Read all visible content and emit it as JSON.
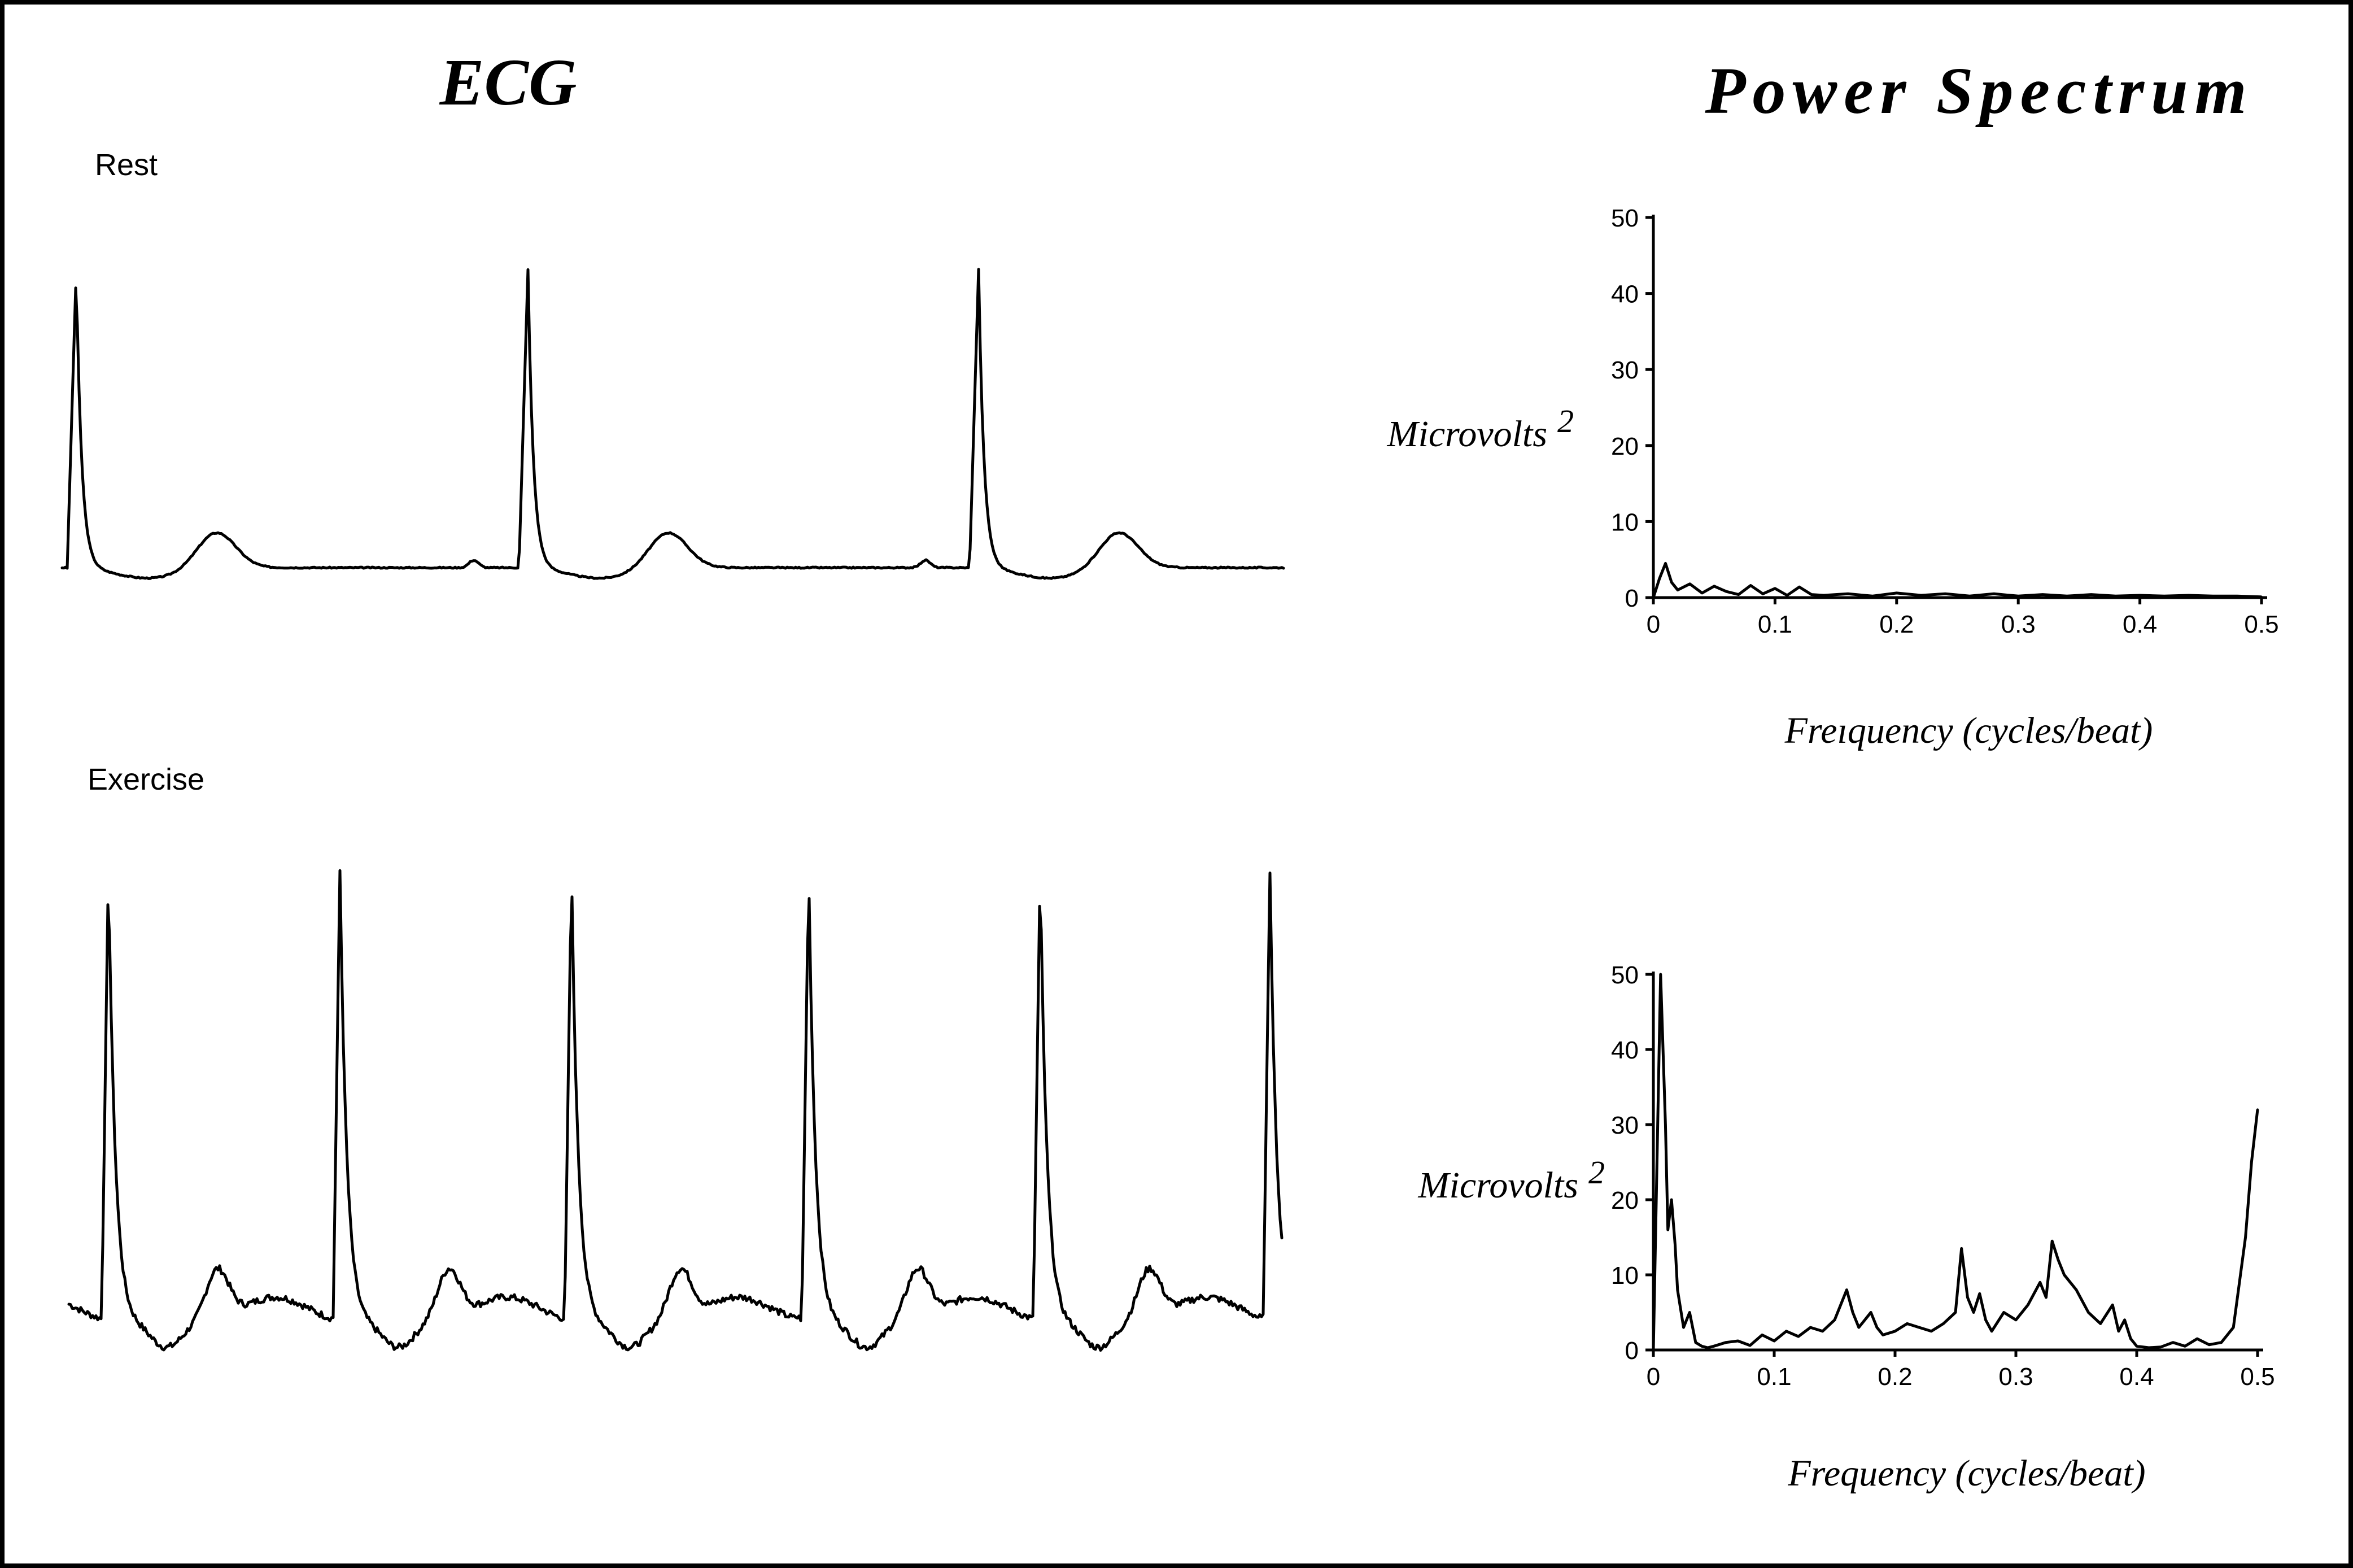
{
  "headings": {
    "ecg": "ECG",
    "power_spectrum": "Power Spectrum"
  },
  "ecg_labels": {
    "rest": "Rest",
    "exercise": "Exercise"
  },
  "chart_data": [
    {
      "type": "line",
      "panel": "rest-spectrum",
      "ylabel": "Microvolts",
      "ylabel_superscript": "2",
      "xlabel": "Frequency (cycles/beat)",
      "xlabel_as_printed": "Freıquency (cycles/beat)",
      "xlim": [
        0,
        0.5
      ],
      "ylim": [
        0,
        50
      ],
      "xticks": [
        "0",
        "0.1",
        "0.2",
        "0.3",
        "0.4",
        "0.5"
      ],
      "yticks": [
        "0",
        "10",
        "20",
        "30",
        "40",
        "50"
      ],
      "x": [
        0,
        0.005,
        0.01,
        0.015,
        0.02,
        0.03,
        0.04,
        0.05,
        0.06,
        0.07,
        0.08,
        0.09,
        0.1,
        0.11,
        0.12,
        0.13,
        0.14,
        0.16,
        0.18,
        0.2,
        0.22,
        0.24,
        0.26,
        0.28,
        0.3,
        0.32,
        0.34,
        0.36,
        0.38,
        0.4,
        0.42,
        0.44,
        0.46,
        0.48,
        0.5
      ],
      "y": [
        0,
        2.5,
        4.5,
        2,
        1,
        1.8,
        0.6,
        1.5,
        0.8,
        0.4,
        1.6,
        0.5,
        1.2,
        0.3,
        1.4,
        0.4,
        0.3,
        0.5,
        0.2,
        0.6,
        0.3,
        0.5,
        0.2,
        0.5,
        0.2,
        0.4,
        0.2,
        0.4,
        0.2,
        0.3,
        0.2,
        0.3,
        0.2,
        0.2,
        0.1
      ]
    },
    {
      "type": "line",
      "panel": "exercise-spectrum",
      "ylabel": "Microvolts",
      "ylabel_superscript": "2",
      "xlabel": "Frequency (cycles/beat)",
      "xlim": [
        0,
        0.5
      ],
      "ylim": [
        0,
        50
      ],
      "xticks": [
        "0",
        "0.1",
        "0.2",
        "0.3",
        "0.4",
        "0.5"
      ],
      "yticks": [
        "0",
        "10",
        "20",
        "30",
        "40",
        "50"
      ],
      "x": [
        0,
        0.006,
        0.01,
        0.012,
        0.015,
        0.018,
        0.02,
        0.025,
        0.03,
        0.035,
        0.04,
        0.045,
        0.05,
        0.06,
        0.07,
        0.08,
        0.09,
        0.1,
        0.11,
        0.12,
        0.13,
        0.14,
        0.15,
        0.16,
        0.165,
        0.17,
        0.18,
        0.185,
        0.19,
        0.2,
        0.21,
        0.22,
        0.23,
        0.24,
        0.25,
        0.255,
        0.26,
        0.265,
        0.27,
        0.275,
        0.28,
        0.29,
        0.3,
        0.31,
        0.32,
        0.325,
        0.33,
        0.335,
        0.34,
        0.35,
        0.36,
        0.37,
        0.38,
        0.385,
        0.39,
        0.395,
        0.4,
        0.41,
        0.42,
        0.43,
        0.44,
        0.45,
        0.46,
        0.47,
        0.48,
        0.49,
        0.495,
        0.5
      ],
      "y": [
        0,
        50,
        30,
        16,
        20,
        14,
        8,
        3,
        5,
        1,
        0.5,
        0.3,
        0.5,
        1,
        1.2,
        0.6,
        2,
        1.2,
        2.5,
        1.8,
        3,
        2.5,
        4,
        8,
        5,
        3,
        5,
        3,
        2,
        2.5,
        3.5,
        3,
        2.5,
        3.5,
        5,
        13.5,
        7,
        5,
        7.5,
        4,
        2.5,
        5,
        4,
        6,
        9,
        7,
        14.5,
        12,
        10,
        8,
        5,
        3.5,
        6,
        2.5,
        4,
        1.5,
        0.5,
        0.3,
        0.4,
        1,
        0.5,
        1.5,
        0.7,
        1,
        3,
        15,
        25,
        32
      ]
    }
  ]
}
